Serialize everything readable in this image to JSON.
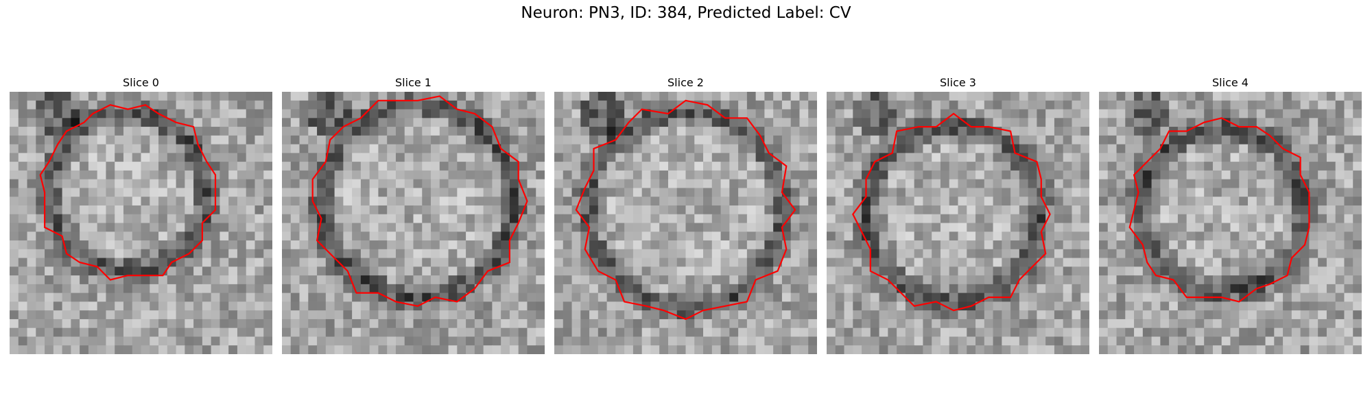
{
  "figure": {
    "title": "Neuron: PN3, ID: 384, Predicted Label: CV",
    "outline_color": "#ff0000",
    "panels": [
      {
        "title": "Slice 0"
      },
      {
        "title": "Slice 1"
      },
      {
        "title": "Slice 2"
      },
      {
        "title": "Slice 3"
      },
      {
        "title": "Slice 4"
      }
    ]
  }
}
